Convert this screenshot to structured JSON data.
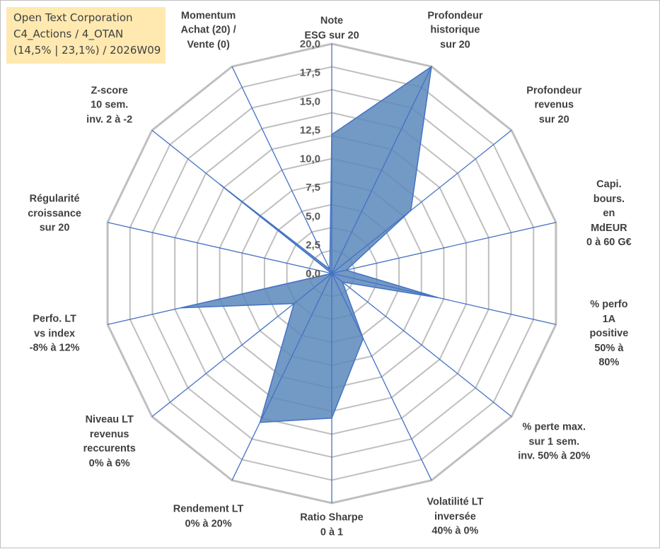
{
  "info_box": {
    "line1": "Open Text Corporation",
    "line2": "C4_Actions / 4_OTAN",
    "line3": "(14,5% | 23,1%) / 2026W09"
  },
  "chart_data": {
    "type": "radar",
    "title": "",
    "rmin": 0,
    "rmax": 20,
    "ticks": [
      "0,0",
      "2,5",
      "5,0",
      "7,5",
      "10,0",
      "12,5",
      "15,0",
      "17,5",
      "20,0"
    ],
    "grid_rings": 10,
    "categories": [
      "Note\nESG sur 20",
      "Profondeur\nhistorique\nsur 20",
      "Profondeur\nrevenus\nsur 20",
      "Capi. bours.\nen MdEUR\n0 à 60 G€",
      "% perfo 1A\npositive\n50% à 80%",
      "% perte max.\nsur 1 sem.\ninv. 50% à 20%",
      "Volatilité LT\ninversée\n40% à 0%",
      "Ratio Sharpe\n0 à 1",
      "Rendement LT\n0% à 20%",
      "Niveau LT\nrevenus\nreccurents\n0% à 6%",
      "Perfo. LT\nvs index\n-8% à 12%",
      "Régularité\ncroissance\nsur 20",
      "Z-score\n10 sem.\ninv. 2 à -2",
      "Momentum\nAchat (20) /\nVente (0)"
    ],
    "series": [
      {
        "name": "Open Text Corporation",
        "values": [
          12.1,
          20.0,
          8.8,
          1.3,
          9.5,
          1.2,
          6.3,
          12.6,
          14.4,
          4.2,
          13.5,
          0.0,
          12.5,
          0.4
        ],
        "fill": "#5a87bb",
        "stroke": "#4472c4"
      }
    ],
    "colors": {
      "grid": "#bfbfbf",
      "axis": "#4472c4"
    }
  }
}
